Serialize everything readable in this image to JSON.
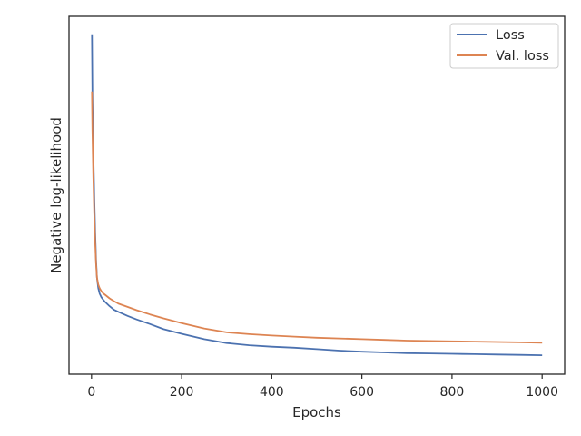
{
  "chart_data": {
    "type": "line",
    "title": "",
    "xlabel": "Epochs",
    "ylabel": "Negative log-likelihood",
    "xlim": [
      -50,
      1050
    ],
    "ylim": [
      0.0,
      1.0
    ],
    "xticks": [
      0,
      200,
      400,
      600,
      800,
      1000
    ],
    "xtick_labels": [
      "0",
      "200",
      "400",
      "600",
      "800",
      "1000"
    ],
    "yticks_shown": false,
    "grid": false,
    "legend_position": "top-right",
    "series": [
      {
        "name": "Loss",
        "color": "#4c72b0",
        "x": [
          1,
          2,
          4,
          6,
          8,
          10,
          12,
          15,
          18,
          22,
          26,
          30,
          40,
          50,
          60,
          80,
          100,
          130,
          160,
          200,
          250,
          300,
          350,
          400,
          450,
          500,
          550,
          600,
          650,
          700,
          750,
          800,
          850,
          900,
          950,
          1000
        ],
        "y": [
          0.95,
          0.78,
          0.62,
          0.5,
          0.4,
          0.32,
          0.27,
          0.24,
          0.225,
          0.215,
          0.208,
          0.202,
          0.19,
          0.18,
          0.174,
          0.163,
          0.153,
          0.14,
          0.126,
          0.113,
          0.098,
          0.087,
          0.081,
          0.077,
          0.074,
          0.07,
          0.066,
          0.063,
          0.061,
          0.059,
          0.058,
          0.057,
          0.056,
          0.055,
          0.054,
          0.053
        ]
      },
      {
        "name": "Val. loss",
        "color": "#dd8452",
        "x": [
          1,
          2,
          4,
          6,
          8,
          10,
          12,
          15,
          18,
          22,
          26,
          30,
          40,
          50,
          60,
          80,
          100,
          130,
          160,
          200,
          250,
          300,
          350,
          400,
          450,
          500,
          550,
          600,
          650,
          700,
          750,
          800,
          850,
          900,
          950,
          1000
        ],
        "y": [
          0.79,
          0.68,
          0.55,
          0.45,
          0.37,
          0.31,
          0.27,
          0.25,
          0.24,
          0.232,
          0.226,
          0.222,
          0.212,
          0.204,
          0.197,
          0.188,
          0.179,
          0.167,
          0.156,
          0.143,
          0.128,
          0.117,
          0.112,
          0.108,
          0.105,
          0.102,
          0.1,
          0.098,
          0.096,
          0.094,
          0.093,
          0.092,
          0.091,
          0.09,
          0.089,
          0.088
        ]
      }
    ]
  }
}
